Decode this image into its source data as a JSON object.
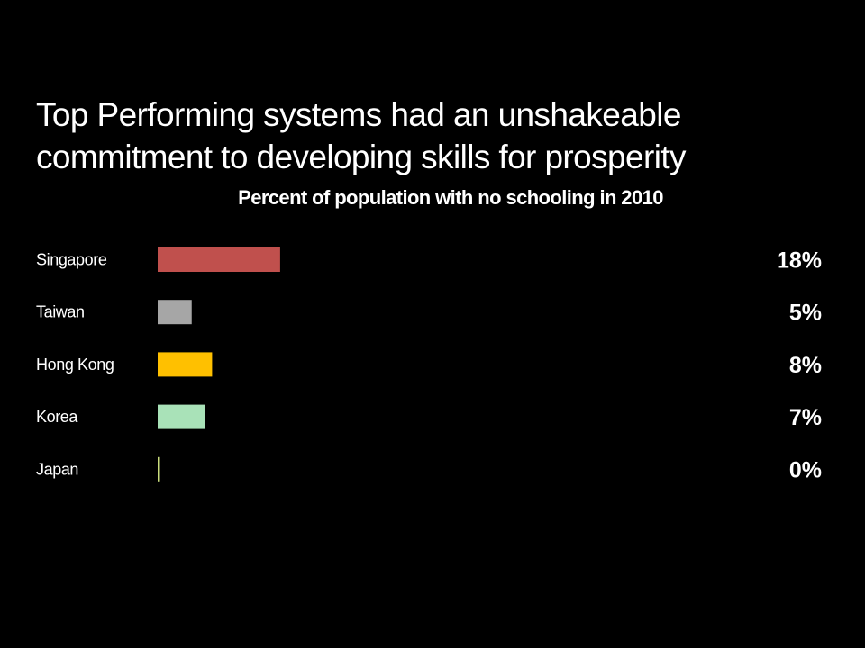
{
  "slide": {
    "title_line1": "Top Performing systems had an unshakeable",
    "title_line2": "commitment to developing skills for prosperity"
  },
  "chart_data": {
    "type": "bar",
    "orientation": "horizontal",
    "title": "Percent of population with no schooling in 2010",
    "categories": [
      "Singapore",
      "Taiwan",
      "Hong Kong",
      "Korea",
      "Japan"
    ],
    "values": [
      18,
      5,
      8,
      7,
      0
    ],
    "value_labels": [
      "18%",
      "5%",
      "8%",
      "7%",
      "0%"
    ],
    "colors": [
      "#c0504d",
      "#a6a6a6",
      "#ffc000",
      "#a9e2b8",
      "#c9dc7c"
    ],
    "unit": "%",
    "xlim": [
      0,
      100
    ],
    "grid": false,
    "legend": "none"
  }
}
